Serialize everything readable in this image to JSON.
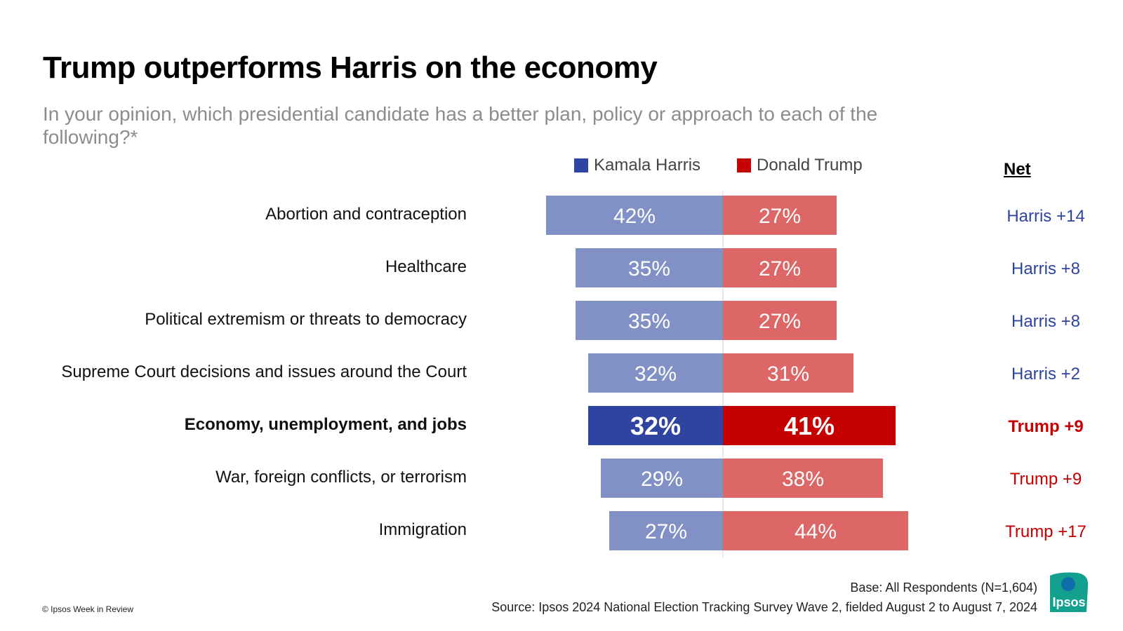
{
  "title": "Trump outperforms Harris on the economy",
  "subtitle": "In your opinion, which presidential candidate has a better plan, policy or approach to each of the following?*",
  "net_header": "Net",
  "colors": {
    "harris": "#8191c5",
    "trump": "#dd6666",
    "harris_highlight": "#2e44a0",
    "trump_highlight": "#c40000",
    "harris_text": "#2e44a0",
    "trump_text": "#c40000"
  },
  "chart_data": {
    "type": "bar",
    "orientation": "diverging-horizontal",
    "categories": [
      "Abortion and contraception",
      "Healthcare",
      "Political extremism or threats to democracy",
      "Supreme Court decisions and issues around the Court",
      "Economy, unemployment, and jobs",
      "War, foreign conflicts, or terrorism",
      "Immigration"
    ],
    "highlight_index": 4,
    "series": [
      {
        "name": "Kamala Harris",
        "values": [
          42,
          35,
          35,
          32,
          32,
          29,
          27
        ],
        "labels": [
          "42%",
          "35%",
          "35%",
          "32%",
          "32%",
          "29%",
          "27%"
        ]
      },
      {
        "name": "Donald Trump",
        "values": [
          27,
          27,
          27,
          31,
          41,
          38,
          44
        ],
        "labels": [
          "27%",
          "27%",
          "27%",
          "31%",
          "41%",
          "38%",
          "44%"
        ]
      }
    ],
    "net": [
      {
        "text": "Harris +14",
        "party": "harris"
      },
      {
        "text": "Harris +8",
        "party": "harris"
      },
      {
        "text": "Harris +8",
        "party": "harris"
      },
      {
        "text": "Harris +2",
        "party": "harris"
      },
      {
        "text": "Trump +9",
        "party": "trump"
      },
      {
        "text": "Trump +9",
        "party": "trump"
      },
      {
        "text": "Trump +17",
        "party": "trump"
      }
    ],
    "legend_position": "top-center",
    "grid": false
  },
  "footer": {
    "base": "Base:  All Respondents (N=1,604)",
    "source": "Source: Ipsos 2024 National Election Tracking Survey Wave 2, fielded August 2 to August 7, 2024",
    "copyright": "© Ipsos Week in Review"
  },
  "logo_text": "Ipsos"
}
